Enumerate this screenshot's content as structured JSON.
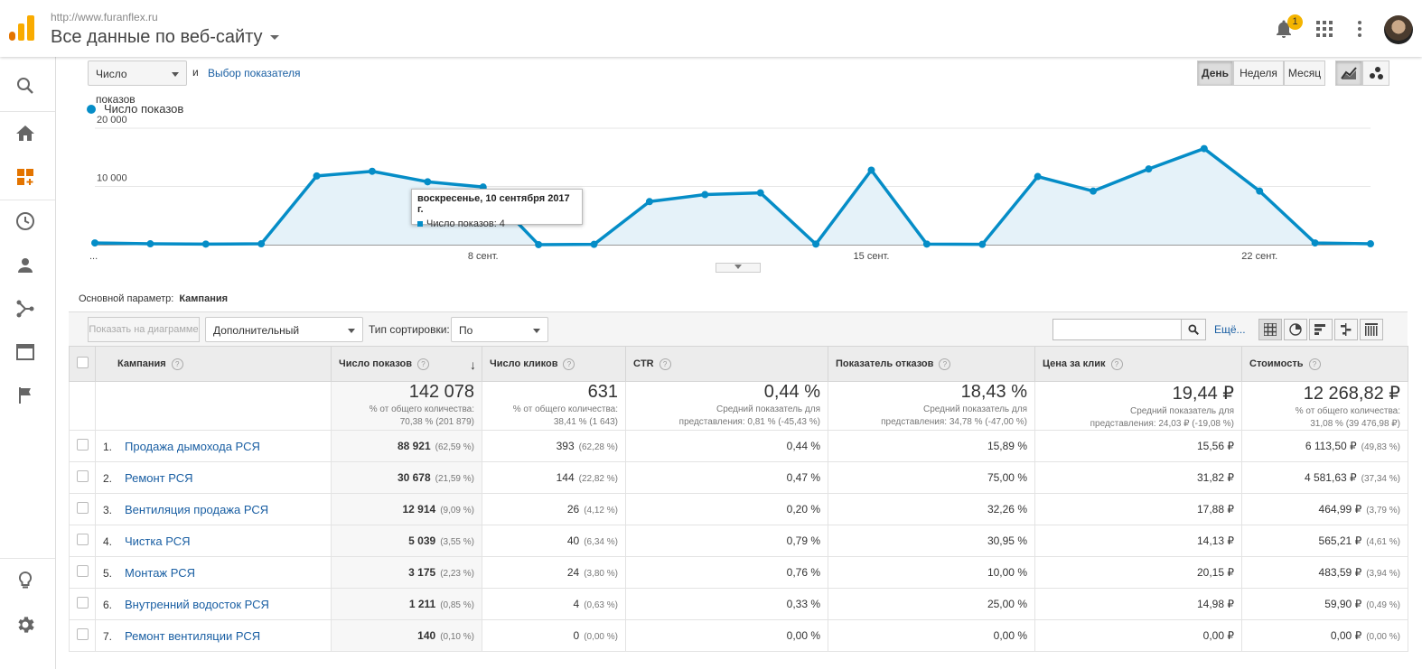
{
  "header": {
    "site_url": "http://www.furanflex.ru",
    "view_title": "Все данные по веб-сайту",
    "notification_count": "1"
  },
  "controls": {
    "metric_select": "Число показов",
    "and_label": "и",
    "choose_metric_link": "Выбор показателя",
    "granularity": [
      "День",
      "Неделя",
      "Месяц"
    ]
  },
  "chart_data": {
    "type": "area",
    "series": [
      {
        "name": "Число показов",
        "values": [
          300,
          150,
          100,
          150,
          11800,
          12600,
          10800,
          9900,
          4,
          50,
          7400,
          8600,
          8900,
          100,
          12800,
          100,
          50,
          11700,
          9200,
          13000,
          16500,
          9200,
          300,
          150
        ]
      }
    ],
    "x_tick_labels": [
      "...",
      "8 сент.",
      "15 сент.",
      "22 сент."
    ],
    "y_tick_labels": [
      "20 000",
      "10 000"
    ],
    "ylim": [
      0,
      20000
    ],
    "grid": true,
    "legend": "top-left"
  },
  "tooltip": {
    "date": "воскресенье, 10 сентября 2017 г.",
    "line": "Число показов: 4"
  },
  "dimension": {
    "label": "Основной параметр:",
    "value": "Кампания"
  },
  "toolbar": {
    "plot_rows": "Показать на диаграмме",
    "secondary_dim": "Дополнительный параметр",
    "sort_label": "Тип сортировки:",
    "sort_value": "По умолчанию",
    "more_link": "Ещё..."
  },
  "table": {
    "headers": [
      "Кампания",
      "Число показов",
      "Число кликов",
      "CTR",
      "Показатель отказов",
      "Цена за клик",
      "Стоимость"
    ],
    "totals": [
      {
        "value": "142 078",
        "sub1": "% от общего количества:",
        "sub2": "70,38 % (201 879)"
      },
      {
        "value": "631",
        "sub1": "% от общего количества:",
        "sub2": "38,41 % (1 643)"
      },
      {
        "value": "0,44 %",
        "sub1": "Средний показатель для",
        "sub2": "представления: 0,81 % (-45,43 %)"
      },
      {
        "value": "18,43 %",
        "sub1": "Средний показатель для",
        "sub2": "представления: 34,78 % (-47,00 %)"
      },
      {
        "value": "19,44 ₽",
        "sub1": "Средний показатель для",
        "sub2": "представления: 24,03 ₽ (-19,08 %)"
      },
      {
        "value": "12 268,82 ₽",
        "sub1": "% от общего количества:",
        "sub2": "31,08 % (39 476,98 ₽)"
      }
    ],
    "rows": [
      {
        "n": "1.",
        "name": "Продажа дымохода РСЯ",
        "imp": "88 921",
        "imp_pct": "(62,59 %)",
        "clk": "393",
        "clk_pct": "(62,28 %)",
        "ctr": "0,44 %",
        "bounce": "15,89 %",
        "cpc": "15,56 ₽",
        "cost": "6 113,50 ₽",
        "cost_pct": "(49,83 %)"
      },
      {
        "n": "2.",
        "name": "Ремонт РСЯ",
        "imp": "30 678",
        "imp_pct": "(21,59 %)",
        "clk": "144",
        "clk_pct": "(22,82 %)",
        "ctr": "0,47 %",
        "bounce": "75,00 %",
        "cpc": "31,82 ₽",
        "cost": "4 581,63 ₽",
        "cost_pct": "(37,34 %)"
      },
      {
        "n": "3.",
        "name": "Вентиляция продажа РСЯ",
        "imp": "12 914",
        "imp_pct": "(9,09 %)",
        "clk": "26",
        "clk_pct": "(4,12 %)",
        "ctr": "0,20 %",
        "bounce": "32,26 %",
        "cpc": "17,88 ₽",
        "cost": "464,99 ₽",
        "cost_pct": "(3,79 %)"
      },
      {
        "n": "4.",
        "name": "Чистка РСЯ",
        "imp": "5 039",
        "imp_pct": "(3,55 %)",
        "clk": "40",
        "clk_pct": "(6,34 %)",
        "ctr": "0,79 %",
        "bounce": "30,95 %",
        "cpc": "14,13 ₽",
        "cost": "565,21 ₽",
        "cost_pct": "(4,61 %)"
      },
      {
        "n": "5.",
        "name": "Монтаж РСЯ",
        "imp": "3 175",
        "imp_pct": "(2,23 %)",
        "clk": "24",
        "clk_pct": "(3,80 %)",
        "ctr": "0,76 %",
        "bounce": "10,00 %",
        "cpc": "20,15 ₽",
        "cost": "483,59 ₽",
        "cost_pct": "(3,94 %)"
      },
      {
        "n": "6.",
        "name": "Внутренний водосток РСЯ",
        "imp": "1 211",
        "imp_pct": "(0,85 %)",
        "clk": "4",
        "clk_pct": "(0,63 %)",
        "ctr": "0,33 %",
        "bounce": "25,00 %",
        "cpc": "14,98 ₽",
        "cost": "59,90 ₽",
        "cost_pct": "(0,49 %)"
      },
      {
        "n": "7.",
        "name": "Ремонт вентиляции РСЯ",
        "imp": "140",
        "imp_pct": "(0,10 %)",
        "clk": "0",
        "clk_pct": "(0,00 %)",
        "ctr": "0,00 %",
        "bounce": "0,00 %",
        "cpc": "0,00 ₽",
        "cost": "0,00 ₽",
        "cost_pct": "(0,00 %)"
      }
    ]
  },
  "colors": {
    "accent": "#058dc7",
    "link": "#1a5fa3",
    "logo_orange": "#f9ab00",
    "logo_dark": "#e37400"
  },
  "icons": [
    "search-icon",
    "home-icon",
    "dashboard-icon",
    "clock-icon",
    "person-icon",
    "acquisition-icon",
    "behavior-icon",
    "flag-icon",
    "lightbulb-icon",
    "gear-icon",
    "bell-icon",
    "apps-icon",
    "more-vert-icon"
  ]
}
